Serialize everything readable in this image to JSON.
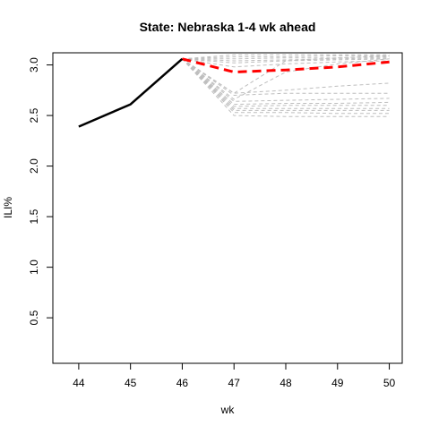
{
  "chart_data": {
    "type": "line",
    "title": "State: Nebraska 1-4 wk ahead",
    "xlabel": "wk",
    "ylabel": "ILI%",
    "xlim": [
      43.5,
      50.25
    ],
    "ylim": [
      0.05,
      3.12
    ],
    "x_ticks": [
      "44",
      "45",
      "46",
      "47",
      "48",
      "49",
      "50"
    ],
    "y_ticks": [
      "0.5",
      "1.0",
      "1.5",
      "2.0",
      "2.5",
      "3.0"
    ],
    "grid": false,
    "observed": {
      "color": "#000000",
      "x": [
        44,
        45,
        46
      ],
      "y": [
        2.39,
        2.61,
        3.06
      ]
    },
    "forecast": {
      "color": "#ff0000",
      "x": [
        46,
        47,
        48,
        49,
        50
      ],
      "y": [
        3.06,
        2.93,
        2.95,
        2.98,
        3.03
      ]
    },
    "ensemble": {
      "color": "#bebebe",
      "x": [
        46,
        47,
        48,
        49,
        50
      ],
      "members": [
        [
          3.06,
          3.1,
          3.1,
          3.1,
          3.1
        ],
        [
          3.06,
          3.08,
          3.08,
          3.09,
          3.09
        ],
        [
          3.06,
          3.06,
          3.07,
          3.07,
          3.08
        ],
        [
          3.06,
          3.04,
          3.05,
          3.06,
          3.07
        ],
        [
          3.06,
          3.02,
          3.04,
          3.05,
          3.06
        ],
        [
          3.06,
          2.98,
          3.01,
          3.03,
          3.04
        ],
        [
          3.06,
          2.72,
          3.04,
          3.07,
          3.09
        ],
        [
          3.06,
          2.66,
          2.93,
          3.01,
          3.06
        ],
        [
          3.06,
          2.72,
          2.75,
          2.79,
          2.82
        ],
        [
          3.06,
          2.7,
          2.72,
          2.72,
          2.72
        ],
        [
          3.06,
          2.64,
          2.65,
          2.66,
          2.67
        ],
        [
          3.06,
          2.61,
          2.62,
          2.62,
          2.63
        ],
        [
          3.06,
          2.59,
          2.6,
          2.6,
          2.6
        ],
        [
          3.06,
          2.57,
          2.57,
          2.57,
          2.57
        ],
        [
          3.06,
          2.55,
          2.55,
          2.55,
          2.55
        ],
        [
          3.06,
          2.53,
          2.53,
          2.52,
          2.52
        ],
        [
          3.06,
          2.5,
          2.49,
          2.49,
          2.49
        ]
      ]
    }
  }
}
